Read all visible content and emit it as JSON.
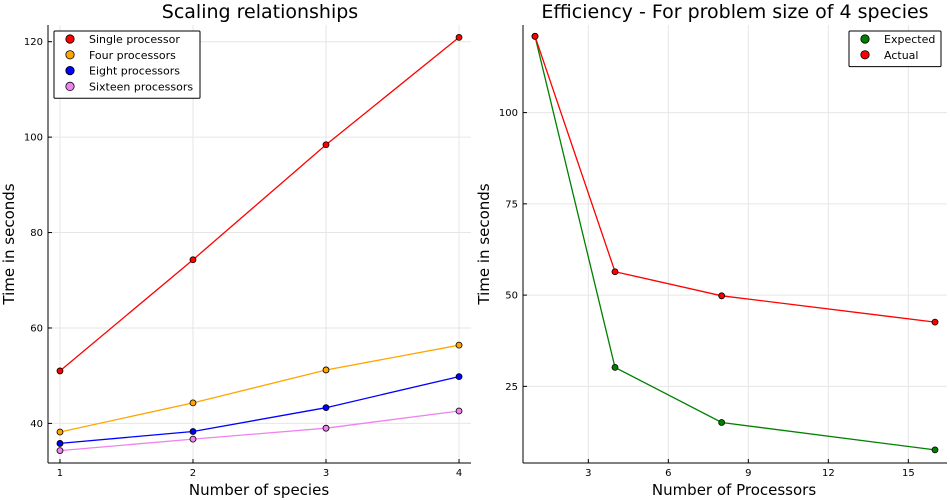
{
  "chart_data": [
    {
      "type": "line",
      "title": "Scaling relationships",
      "xlabel": "Number of species",
      "ylabel": "Time in seconds",
      "x": [
        1,
        2,
        3,
        4
      ],
      "xlim": [
        0.91,
        4.09
      ],
      "ylim": [
        31.7,
        123.5
      ],
      "xticks": [
        1,
        2,
        3,
        4
      ],
      "yticks": [
        40,
        60,
        80,
        100,
        120
      ],
      "grid": true,
      "legend_position": "top-left",
      "series": [
        {
          "name": "Single processor",
          "color": "#ff0000",
          "values": [
            51.0,
            74.3,
            98.4,
            120.9
          ]
        },
        {
          "name": "Four processors",
          "color": "#ffa500",
          "values": [
            38.2,
            44.3,
            51.2,
            56.4
          ]
        },
        {
          "name": "Eight processors",
          "color": "#0000ff",
          "values": [
            35.8,
            38.3,
            43.3,
            49.8
          ]
        },
        {
          "name": "Sixteen processors",
          "color": "#ee82ee",
          "values": [
            34.3,
            36.7,
            39.0,
            42.6
          ]
        }
      ]
    },
    {
      "type": "line",
      "title": "Efficiency - For problem size of 4 species",
      "xlabel": "Number of Processors",
      "ylabel": "Time in seconds",
      "x": [
        1,
        4,
        8,
        16
      ],
      "xlim": [
        0.55,
        16.45
      ],
      "ylim": [
        4,
        124
      ],
      "xticks": [
        3,
        6,
        9,
        12,
        15
      ],
      "yticks": [
        25,
        50,
        75,
        100
      ],
      "grid": true,
      "legend_position": "top-right",
      "series": [
        {
          "name": "Expected",
          "color": "#008000",
          "values": [
            120.9,
            30.2,
            15.1,
            7.6
          ]
        },
        {
          "name": "Actual",
          "color": "#ff0000",
          "values": [
            120.9,
            56.4,
            49.8,
            42.6
          ]
        }
      ]
    }
  ]
}
